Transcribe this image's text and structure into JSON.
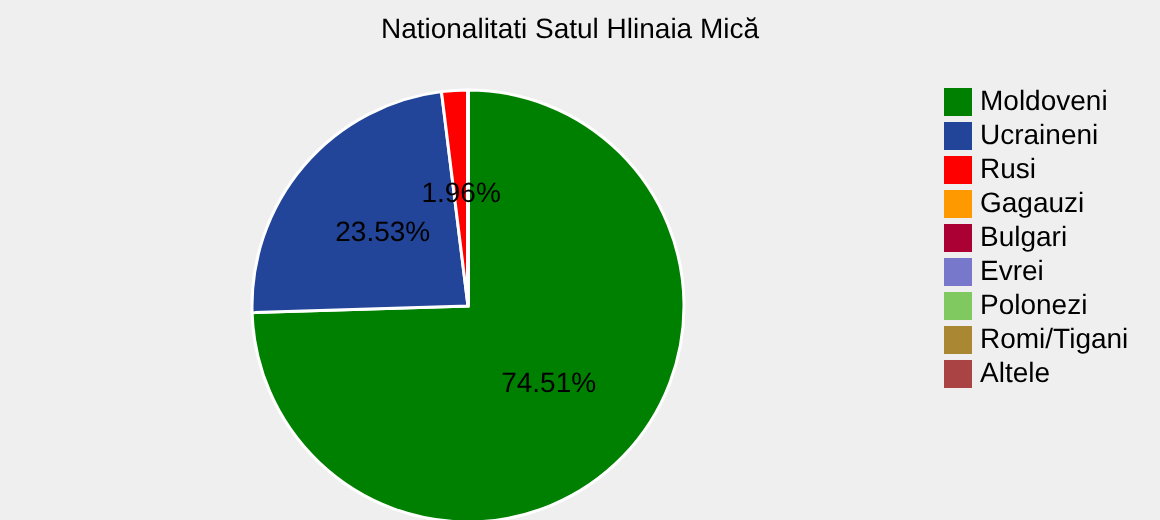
{
  "chart_data": {
    "type": "pie",
    "title": "Nationalitati Satul Hlinaia Mică",
    "categories": [
      "Moldoveni",
      "Ucraineni",
      "Rusi",
      "Gagauzi",
      "Bulgari",
      "Evrei",
      "Polonezi",
      "Romi/Tigani",
      "Altele"
    ],
    "values": [
      74.51,
      23.53,
      1.96,
      0,
      0,
      0,
      0,
      0,
      0
    ],
    "colors": [
      "#008000",
      "#224499",
      "#ff0000",
      "#ff9900",
      "#aa0033",
      "#7777cc",
      "#80c860",
      "#aa8833",
      "#aa4444"
    ],
    "value_labels": [
      "74.51%",
      "23.53%",
      "1.96%",
      null,
      null,
      null,
      null,
      null,
      null
    ],
    "legend": "right"
  }
}
